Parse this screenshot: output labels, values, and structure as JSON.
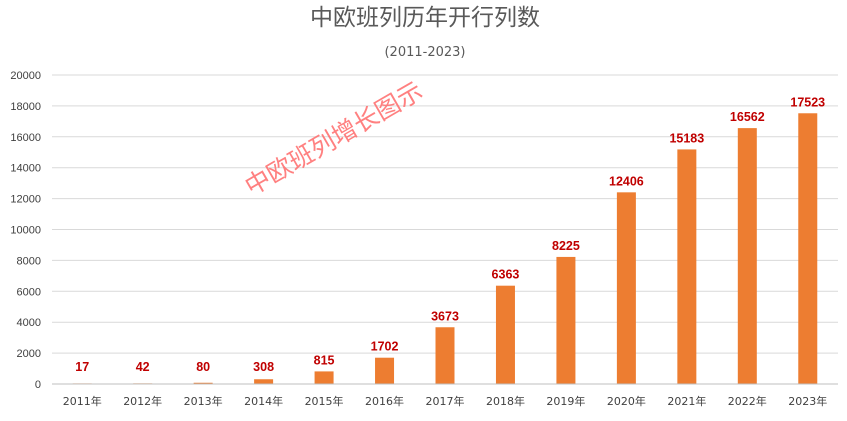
{
  "chart_data": {
    "type": "bar",
    "title": "中欧班列历年开行列数",
    "subtitle": "(2011-2023)",
    "xlabel": "",
    "ylabel": "",
    "categories": [
      "2011年",
      "2012年",
      "2013年",
      "2014年",
      "2015年",
      "2016年",
      "2017年",
      "2018年",
      "2019年",
      "2020年",
      "2021年",
      "2022年",
      "2023年"
    ],
    "values": [
      17,
      42,
      80,
      308,
      815,
      1702,
      3673,
      6363,
      8225,
      12406,
      15183,
      16562,
      17523
    ],
    "ylim": [
      0,
      20000
    ],
    "yticks": [
      0,
      2000,
      4000,
      6000,
      8000,
      10000,
      12000,
      14000,
      16000,
      18000,
      20000
    ],
    "grid": true,
    "legend": "none",
    "data_labels": true,
    "annotation": "中欧班列增长图示",
    "colors": {
      "bar": "#ed7d31",
      "data_label": "#c00000",
      "watermark": "#ff6a6a",
      "grid": "#d9d9d9",
      "title": "#595959"
    }
  }
}
